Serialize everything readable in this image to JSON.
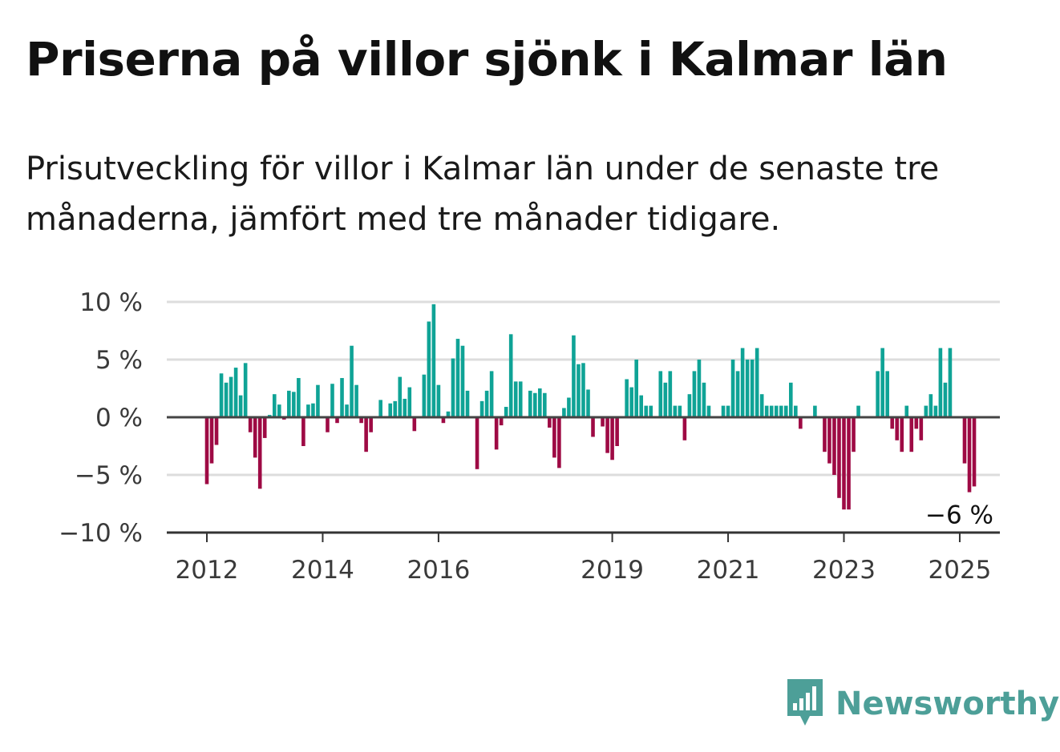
{
  "title": "Priserna på villor sjönk i Kalmar län",
  "subtitle": "Prisutveckling för villor i Kalmar län under de senaste tre månaderna, jämfört med tre månader tidigare.",
  "brand": {
    "name": "Newsworthy",
    "icon": "newsworthy-bar-chart-icon",
    "color": "#4d9f98"
  },
  "colors": {
    "positive": "#0fa396",
    "negative": "#9e0a44",
    "grid": "#dddddd",
    "zero_line": "#444444"
  },
  "chart_data": {
    "type": "bar",
    "title": "Priserna på villor sjönk i Kalmar län",
    "xlabel": "",
    "ylabel": "",
    "ylim": [
      -10,
      10
    ],
    "yticks": [
      {
        "value": 10,
        "label": "10 %"
      },
      {
        "value": 5,
        "label": "5 %"
      },
      {
        "value": 0,
        "label": "0 %"
      },
      {
        "value": -5,
        "label": "−5 %"
      },
      {
        "value": -10,
        "label": "−10 %"
      }
    ],
    "xticks": [
      {
        "year": 2012,
        "label": "2012"
      },
      {
        "year": 2014,
        "label": "2014"
      },
      {
        "year": 2016,
        "label": "2016"
      },
      {
        "year": 2019,
        "label": "2019"
      },
      {
        "year": 2021,
        "label": "2021"
      },
      {
        "year": 2023,
        "label": "2023"
      },
      {
        "year": 2025,
        "label": "2025"
      }
    ],
    "grid": true,
    "start": "2012-01",
    "frequency": "monthly",
    "values": [
      -5.8,
      -4.0,
      -2.4,
      3.8,
      3.0,
      3.5,
      4.3,
      1.9,
      4.7,
      -1.3,
      -3.5,
      -6.2,
      -1.8,
      0.2,
      2.0,
      1.1,
      -0.2,
      2.3,
      2.2,
      3.4,
      -2.5,
      1.1,
      1.2,
      2.8,
      0.0,
      -1.3,
      2.9,
      -0.5,
      3.4,
      1.1,
      6.2,
      2.8,
      -0.5,
      -3.0,
      -1.3,
      0.0,
      1.5,
      0.0,
      1.2,
      1.4,
      3.5,
      1.6,
      2.6,
      -1.2,
      0.0,
      3.7,
      8.3,
      9.8,
      2.8,
      -0.5,
      0.5,
      5.1,
      6.8,
      6.2,
      2.3,
      0.0,
      -4.5,
      1.4,
      2.3,
      4.0,
      -2.8,
      -0.7,
      0.9,
      7.2,
      3.1,
      3.1,
      0.0,
      2.3,
      2.1,
      2.5,
      2.1,
      -0.9,
      -3.5,
      -4.4,
      0.8,
      1.7,
      7.1,
      4.6,
      4.7,
      2.4,
      -1.7,
      0.0,
      -0.8,
      -3.1,
      -3.7,
      -2.5,
      0.0,
      3.3,
      2.6,
      5.0,
      1.9,
      1.0,
      1.0,
      0.0,
      4.0,
      3.0,
      4.0,
      1.0,
      1.0,
      -2.0,
      2.0,
      4.0,
      5.0,
      3.0,
      1.0,
      0.0,
      0.0,
      1.0,
      1.0,
      5.0,
      4.0,
      6.0,
      5.0,
      5.0,
      6.0,
      2.0,
      1.0,
      1.0,
      1.0,
      1.0,
      1.0,
      3.0,
      1.0,
      -1.0,
      0.0,
      0.0,
      1.0,
      0.0,
      -3.0,
      -4.0,
      -5.0,
      -7.0,
      -8.0,
      -8.0,
      -3.0,
      1.0,
      0.0,
      0.0,
      0.0,
      4.0,
      6.0,
      4.0,
      -1.0,
      -2.0,
      -3.0,
      1.0,
      -3.0,
      -1.0,
      -2.0,
      1.0,
      2.0,
      1.0,
      6.0,
      3.0,
      6.0,
      0.0,
      0.0,
      -4.0,
      -6.5,
      -6.0
    ],
    "annotations": [
      {
        "label": "−6 %",
        "target": "last"
      }
    ]
  }
}
